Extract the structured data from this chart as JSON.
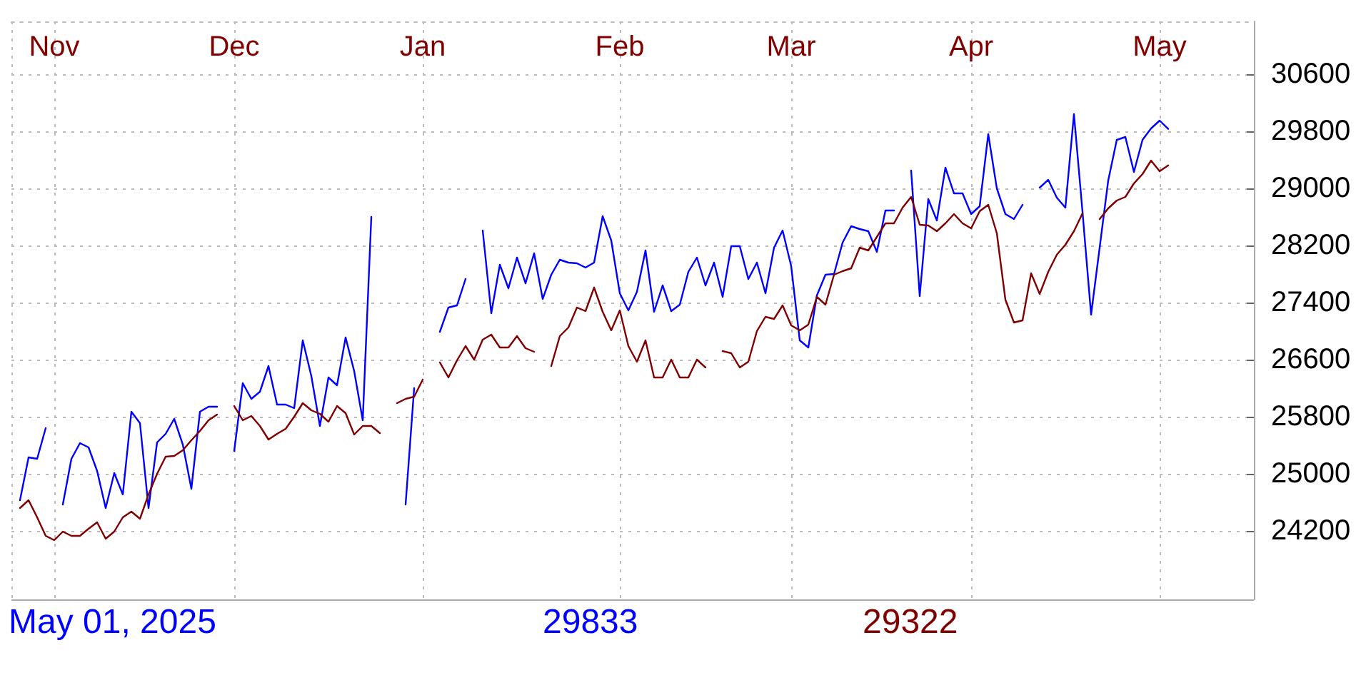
{
  "chart_data": {
    "type": "line",
    "categories": [
      null,
      null,
      null,
      null,
      null,
      "Nov",
      null,
      null,
      null,
      null,
      null,
      null,
      null,
      null,
      null,
      null,
      null,
      null,
      null,
      null,
      null,
      null,
      null,
      null,
      null,
      null,
      "Dec",
      null,
      null,
      null,
      null,
      null,
      null,
      null,
      null,
      null,
      null,
      null,
      null,
      null,
      null,
      null,
      null,
      null,
      null,
      null,
      null,
      null,
      "Jan",
      null,
      null,
      null,
      null,
      null,
      null,
      null,
      null,
      null,
      null,
      null,
      null,
      null,
      null,
      null,
      null,
      null,
      null,
      null,
      null,
      null,
      null,
      "Feb",
      null,
      null,
      null,
      null,
      null,
      null,
      null,
      null,
      null,
      null,
      null,
      null,
      null,
      null,
      null,
      null,
      null,
      null,
      null,
      "Mar",
      null,
      null,
      null,
      null,
      null,
      null,
      null,
      null,
      null,
      null,
      null,
      null,
      null,
      null,
      null,
      null,
      null,
      null,
      null,
      null,
      "Apr",
      null,
      null,
      null,
      null,
      null,
      null,
      null,
      null,
      null,
      null,
      null,
      null,
      null,
      null,
      null,
      null,
      null,
      null,
      null,
      null,
      null,
      "May",
      null,
      null,
      null,
      null,
      null,
      null,
      null,
      null,
      null,
      null,
      null
    ],
    "series": [
      {
        "color": "#0000ff",
        "values": [
          null,
          24630,
          25230,
          25210,
          25640,
          null,
          24570,
          25210,
          25430,
          25370,
          25040,
          24520,
          25010,
          24710,
          25870,
          25710,
          24520,
          25440,
          25560,
          25770,
          25410,
          24790,
          25870,
          25940,
          25940,
          null,
          25320,
          26270,
          26050,
          26150,
          26510,
          25970,
          25970,
          25920,
          26870,
          26370,
          25670,
          26350,
          26240,
          26910,
          26440,
          25750,
          28600,
          null,
          null,
          null,
          24570,
          26200,
          null,
          null,
          26990,
          27330,
          27360,
          27730,
          null,
          28410,
          27250,
          27930,
          27600,
          28030,
          27670,
          28090,
          27450,
          27790,
          28000,
          27960,
          27950,
          27890,
          27960,
          28610,
          28270,
          27530,
          27290,
          27550,
          28130,
          27270,
          27640,
          27280,
          27370,
          27830,
          28030,
          27640,
          27960,
          27480,
          28190,
          28190,
          27730,
          27960,
          27530,
          28170,
          28410,
          27910,
          26870,
          26770,
          27500,
          27790,
          27800,
          28240,
          28470,
          28430,
          28400,
          28110,
          28690,
          28690,
          null,
          29250,
          27490,
          28850,
          28550,
          29290,
          28930,
          28930,
          28640,
          28750,
          29760,
          29000,
          28640,
          28570,
          28770,
          null,
          29010,
          29120,
          28870,
          28730,
          30040,
          28670,
          27230,
          28170,
          29110,
          29680,
          29720,
          29230,
          29680,
          29840,
          29950,
          29833,
          null,
          null,
          null,
          null,
          null,
          null,
          null,
          null,
          null,
          null
        ]
      },
      {
        "color": "#800000",
        "values": [
          null,
          24520,
          24630,
          24390,
          24130,
          24070,
          24190,
          24130,
          24130,
          24230,
          24320,
          24090,
          24190,
          24390,
          24470,
          24370,
          24710,
          25000,
          25240,
          25250,
          25330,
          25470,
          25600,
          25750,
          25830,
          null,
          25950,
          25750,
          25810,
          25670,
          25480,
          25560,
          25630,
          25800,
          25990,
          25890,
          25840,
          25730,
          25950,
          25850,
          25550,
          25670,
          25670,
          25570,
          null,
          25990,
          26050,
          26080,
          26320,
          null,
          26560,
          26350,
          26590,
          26790,
          26600,
          26880,
          26950,
          26770,
          26770,
          26930,
          26760,
          26710,
          null,
          26510,
          26930,
          27050,
          27330,
          27280,
          27610,
          27270,
          27010,
          27290,
          26790,
          26570,
          26870,
          26350,
          26350,
          26600,
          26350,
          26350,
          26600,
          26490,
          null,
          26720,
          26690,
          26490,
          26570,
          27000,
          27200,
          27170,
          27360,
          27080,
          27010,
          27090,
          27480,
          27370,
          27790,
          27840,
          27880,
          28170,
          28130,
          28320,
          28510,
          28510,
          28730,
          28880,
          28490,
          28480,
          28400,
          28510,
          28640,
          28510,
          28440,
          28680,
          28770,
          28370,
          27440,
          27120,
          27150,
          27810,
          27520,
          27830,
          28070,
          28210,
          28400,
          28650,
          null,
          28570,
          28720,
          28830,
          28880,
          29070,
          29200,
          29390,
          29240,
          29322,
          null,
          null,
          null,
          null,
          null,
          null,
          null,
          null,
          null,
          null
        ]
      }
    ],
    "ylim": [
      23240,
      31340
    ],
    "yticks": [
      24200,
      25000,
      25800,
      26600,
      27400,
      28200,
      29000,
      29800,
      30600
    ],
    "grid": true,
    "marker": "none",
    "line_style": "solid",
    "annotations": [
      "May 01, 2025",
      "29833",
      "29322"
    ]
  }
}
